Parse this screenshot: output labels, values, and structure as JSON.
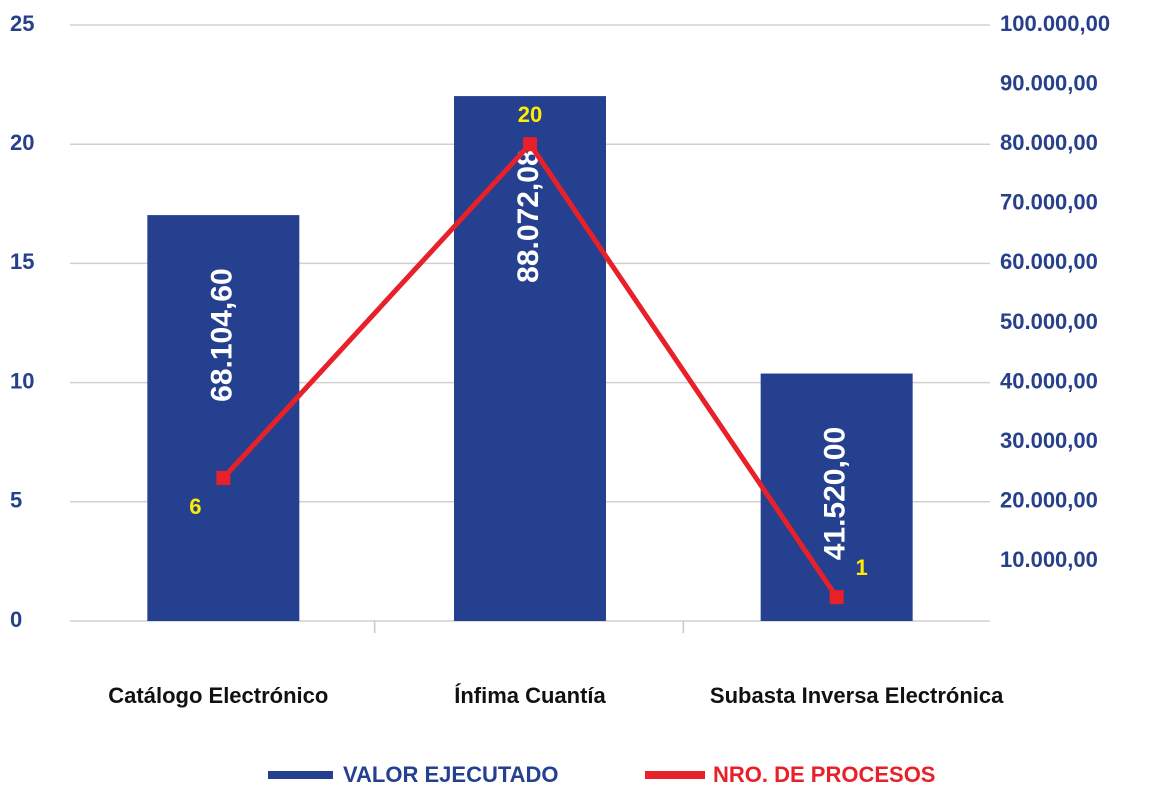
{
  "chart_data": {
    "type": "bar-line",
    "categories": [
      "Catálogo Electrónico",
      "Ínfima Cuantía",
      "Subasta Inversa Electrónica"
    ],
    "series": [
      {
        "name": "VALOR EJECUTADO",
        "color": "#25408f",
        "type": "bar",
        "axis": "y2",
        "values": [
          68104.6,
          88072.08,
          41520.0
        ],
        "value_labels": [
          "68.104,60",
          "88.072,08",
          "41.520,00"
        ]
      },
      {
        "name": "NRO. DE PROCESOS",
        "color": "#e8202a",
        "type": "line",
        "axis": "y",
        "values": [
          6,
          20,
          1
        ]
      }
    ],
    "ylim": [
      0,
      25
    ],
    "yticks": [
      0,
      5,
      10,
      15,
      20,
      25
    ],
    "y2lim": [
      0,
      100000
    ],
    "y2ticks": [
      {
        "value": 10000,
        "label": "10.000,00"
      },
      {
        "value": 20000,
        "label": "20.000,00"
      },
      {
        "value": 30000,
        "label": "30.000,00"
      },
      {
        "value": 40000,
        "label": "40.000,00"
      },
      {
        "value": 50000,
        "label": "50.000,00"
      },
      {
        "value": 60000,
        "label": "60.000,00"
      },
      {
        "value": 70000,
        "label": "70.000,00"
      },
      {
        "value": 80000,
        "label": "80.000,00"
      },
      {
        "value": 90000,
        "label": "90.000,00"
      },
      {
        "value": 100000,
        "label": "100.000,00"
      }
    ],
    "grid": true,
    "legend": "bottom"
  }
}
